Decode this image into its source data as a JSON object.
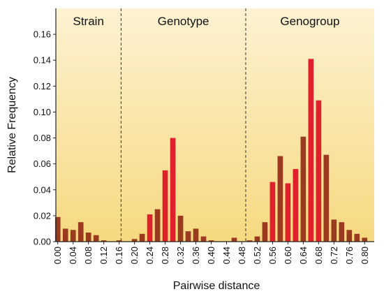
{
  "chart_data": {
    "type": "bar",
    "xlabel": "Pairwise distance",
    "ylabel": "Relative Frequency",
    "xlim": [
      -0.005,
      0.825
    ],
    "ylim": [
      0,
      0.18
    ],
    "y_ticks": [
      0.0,
      0.02,
      0.04,
      0.06,
      0.08,
      0.1,
      0.12,
      0.14,
      0.16
    ],
    "y_tick_labels": [
      "0.00",
      "0.02",
      "0.04",
      "0.06",
      "0.08",
      "0.10",
      "0.12",
      "0.14",
      "0.16"
    ],
    "x_tick_labels": [
      "0.00",
      "0.04",
      "0.08",
      "0.12",
      "0.16",
      "0.20",
      "0.24",
      "0.28",
      "0.32",
      "0.36",
      "0.40",
      "0.44",
      "0.48",
      "0.52",
      "0.56",
      "0.60",
      "0.64",
      "0.68",
      "0.72",
      "0.76",
      "0.80"
    ],
    "regions": [
      {
        "label": "Strain",
        "from": -0.005,
        "to": 0.165
      },
      {
        "label": "Genotype",
        "from": 0.165,
        "to": 0.49
      },
      {
        "label": "Genogroup",
        "from": 0.49,
        "to": 0.825
      }
    ],
    "dividers": [
      0.165,
      0.49
    ],
    "bar_width": 0.014,
    "bars": [
      {
        "x": 0.0,
        "value": 0.019,
        "color": "brown"
      },
      {
        "x": 0.02,
        "value": 0.01,
        "color": "brown"
      },
      {
        "x": 0.04,
        "value": 0.009,
        "color": "brown"
      },
      {
        "x": 0.06,
        "value": 0.015,
        "color": "brown"
      },
      {
        "x": 0.08,
        "value": 0.007,
        "color": "brown"
      },
      {
        "x": 0.1,
        "value": 0.005,
        "color": "brown"
      },
      {
        "x": 0.12,
        "value": 0.001,
        "color": "brown"
      },
      {
        "x": 0.16,
        "value": 0.001,
        "color": "brown"
      },
      {
        "x": 0.2,
        "value": 0.002,
        "color": "brown"
      },
      {
        "x": 0.22,
        "value": 0.006,
        "color": "brown"
      },
      {
        "x": 0.24,
        "value": 0.021,
        "color": "red"
      },
      {
        "x": 0.26,
        "value": 0.025,
        "color": "brown"
      },
      {
        "x": 0.28,
        "value": 0.055,
        "color": "red"
      },
      {
        "x": 0.3,
        "value": 0.08,
        "color": "red"
      },
      {
        "x": 0.32,
        "value": 0.02,
        "color": "brown"
      },
      {
        "x": 0.34,
        "value": 0.008,
        "color": "brown"
      },
      {
        "x": 0.36,
        "value": 0.01,
        "color": "brown"
      },
      {
        "x": 0.38,
        "value": 0.004,
        "color": "brown"
      },
      {
        "x": 0.4,
        "value": 0.001,
        "color": "brown"
      },
      {
        "x": 0.46,
        "value": 0.003,
        "color": "brown"
      },
      {
        "x": 0.5,
        "value": 0.001,
        "color": "brown"
      },
      {
        "x": 0.52,
        "value": 0.004,
        "color": "brown"
      },
      {
        "x": 0.54,
        "value": 0.015,
        "color": "brown"
      },
      {
        "x": 0.56,
        "value": 0.046,
        "color": "red"
      },
      {
        "x": 0.58,
        "value": 0.066,
        "color": "brown"
      },
      {
        "x": 0.6,
        "value": 0.045,
        "color": "red"
      },
      {
        "x": 0.62,
        "value": 0.056,
        "color": "red"
      },
      {
        "x": 0.64,
        "value": 0.081,
        "color": "brown"
      },
      {
        "x": 0.66,
        "value": 0.141,
        "color": "red"
      },
      {
        "x": 0.68,
        "value": 0.109,
        "color": "red"
      },
      {
        "x": 0.7,
        "value": 0.067,
        "color": "brown"
      },
      {
        "x": 0.72,
        "value": 0.017,
        "color": "brown"
      },
      {
        "x": 0.74,
        "value": 0.015,
        "color": "brown"
      },
      {
        "x": 0.76,
        "value": 0.009,
        "color": "brown"
      },
      {
        "x": 0.78,
        "value": 0.006,
        "color": "brown"
      },
      {
        "x": 0.8,
        "value": 0.003,
        "color": "brown"
      }
    ],
    "colors": {
      "red": "#e0202a",
      "brown": "#9a3a1e",
      "background_top": "#fdf2d2",
      "background_bottom": "#f6d980",
      "divider": "#333333",
      "axis": "#222222"
    },
    "grid": false
  }
}
